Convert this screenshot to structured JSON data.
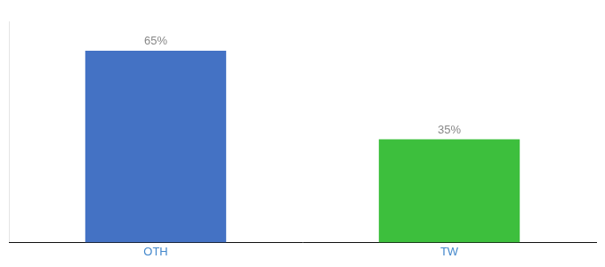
{
  "chart_data": {
    "type": "bar",
    "categories": [
      "OTH",
      "TW"
    ],
    "values": [
      65,
      35
    ],
    "value_labels": [
      "65%",
      "35%"
    ],
    "colors": [
      "#4472c4",
      "#3dbf3d"
    ],
    "ylim": [
      0,
      75
    ],
    "grid": false,
    "data_labels": true,
    "tick_labels": "x"
  }
}
